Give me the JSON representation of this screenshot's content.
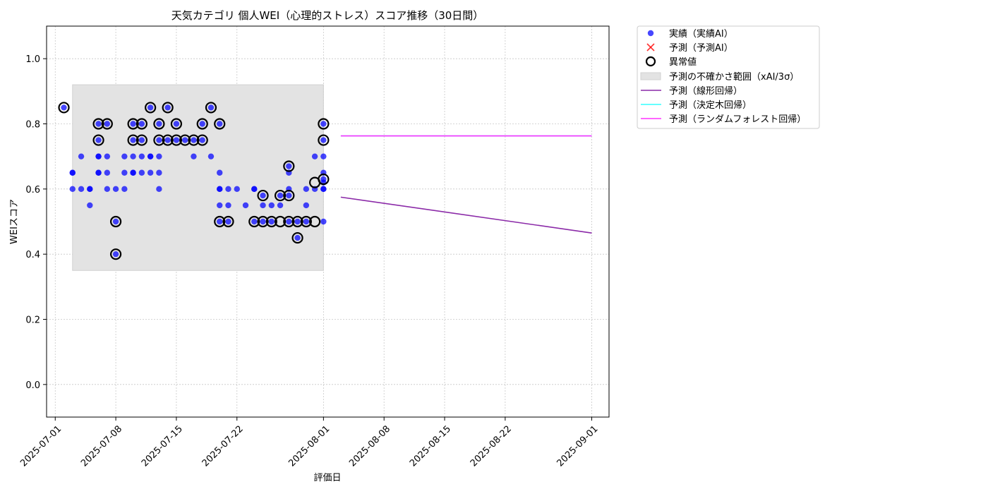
{
  "chart_data": {
    "type": "scatter",
    "title": "天気カテゴリ 個人WEI（心理的ストレス）スコア推移（30日間）",
    "xlabel": "評価日",
    "ylabel": "WEIスコア",
    "xlim": [
      "2025-06-30",
      "2025-09-03"
    ],
    "ylim": [
      -0.1,
      1.1
    ],
    "grid": true,
    "legend_position": "outside-top-right",
    "x_ticks": [
      "2025-07-01",
      "2025-07-08",
      "2025-07-15",
      "2025-07-22",
      "2025-08-01",
      "2025-08-08",
      "2025-08-15",
      "2025-08-22",
      "2025-09-01"
    ],
    "y_ticks": [
      0.0,
      0.2,
      0.4,
      0.6,
      0.8,
      1.0
    ],
    "y_tick_labels": [
      "0.0",
      "0.2",
      "0.4",
      "0.6",
      "0.8",
      "1.0"
    ],
    "uncertainty_band": {
      "name": "予測の不確かさ範囲（xAI/3σ）",
      "x_start": "2025-07-03",
      "x_end": "2025-08-01",
      "y_low": 0.35,
      "y_high": 0.92,
      "color": "#e3e3e3"
    },
    "series": [
      {
        "name": "実績（実績AI）",
        "kind": "points",
        "color": "#0000ff",
        "points": [
          [
            "2025-07-02",
            0.85
          ],
          [
            "2025-07-03",
            0.65
          ],
          [
            "2025-07-03",
            0.6
          ],
          [
            "2025-07-03",
            0.65
          ],
          [
            "2025-07-04",
            0.7
          ],
          [
            "2025-07-04",
            0.6
          ],
          [
            "2025-07-05",
            0.6
          ],
          [
            "2025-07-05",
            0.55
          ],
          [
            "2025-07-05",
            0.6
          ],
          [
            "2025-07-06",
            0.65
          ],
          [
            "2025-07-06",
            0.7
          ],
          [
            "2025-07-06",
            0.7
          ],
          [
            "2025-07-06",
            0.65
          ],
          [
            "2025-07-06",
            0.8
          ],
          [
            "2025-07-06",
            0.75
          ],
          [
            "2025-07-07",
            0.65
          ],
          [
            "2025-07-07",
            0.8
          ],
          [
            "2025-07-07",
            0.7
          ],
          [
            "2025-07-07",
            0.6
          ],
          [
            "2025-07-08",
            0.5
          ],
          [
            "2025-07-08",
            0.4
          ],
          [
            "2025-07-08",
            0.6
          ],
          [
            "2025-07-09",
            0.7
          ],
          [
            "2025-07-09",
            0.65
          ],
          [
            "2025-07-09",
            0.6
          ],
          [
            "2025-07-10",
            0.65
          ],
          [
            "2025-07-10",
            0.75
          ],
          [
            "2025-07-10",
            0.7
          ],
          [
            "2025-07-10",
            0.8
          ],
          [
            "2025-07-10",
            0.65
          ],
          [
            "2025-07-11",
            0.75
          ],
          [
            "2025-07-11",
            0.8
          ],
          [
            "2025-07-11",
            0.7
          ],
          [
            "2025-07-11",
            0.65
          ],
          [
            "2025-07-12",
            0.7
          ],
          [
            "2025-07-12",
            0.65
          ],
          [
            "2025-07-12",
            0.7
          ],
          [
            "2025-07-12",
            0.85
          ],
          [
            "2025-07-13",
            0.8
          ],
          [
            "2025-07-13",
            0.7
          ],
          [
            "2025-07-13",
            0.65
          ],
          [
            "2025-07-13",
            0.75
          ],
          [
            "2025-07-13",
            0.6
          ],
          [
            "2025-07-14",
            0.75
          ],
          [
            "2025-07-14",
            0.85
          ],
          [
            "2025-07-15",
            0.75
          ],
          [
            "2025-07-15",
            0.8
          ],
          [
            "2025-07-16",
            0.75
          ],
          [
            "2025-07-17",
            0.75
          ],
          [
            "2025-07-17",
            0.7
          ],
          [
            "2025-07-18",
            0.75
          ],
          [
            "2025-07-18",
            0.8
          ],
          [
            "2025-07-19",
            0.85
          ],
          [
            "2025-07-19",
            0.7
          ],
          [
            "2025-07-20",
            0.8
          ],
          [
            "2025-07-20",
            0.65
          ],
          [
            "2025-07-20",
            0.6
          ],
          [
            "2025-07-20",
            0.5
          ],
          [
            "2025-07-20",
            0.55
          ],
          [
            "2025-07-20",
            0.6
          ],
          [
            "2025-07-21",
            0.55
          ],
          [
            "2025-07-21",
            0.5
          ],
          [
            "2025-07-21",
            0.6
          ],
          [
            "2025-07-22",
            0.6
          ],
          [
            "2025-07-23",
            0.55
          ],
          [
            "2025-07-24",
            0.6
          ],
          [
            "2025-07-24",
            0.6
          ],
          [
            "2025-07-24",
            0.5
          ],
          [
            "2025-07-25",
            0.55
          ],
          [
            "2025-07-25",
            0.58
          ],
          [
            "2025-07-25",
            0.5
          ],
          [
            "2025-07-26",
            0.55
          ],
          [
            "2025-07-26",
            0.5
          ],
          [
            "2025-07-27",
            0.55
          ],
          [
            "2025-07-27",
            0.58
          ],
          [
            "2025-07-28",
            0.5
          ],
          [
            "2025-07-28",
            0.67
          ],
          [
            "2025-07-28",
            0.65
          ],
          [
            "2025-07-28",
            0.6
          ],
          [
            "2025-07-28",
            0.58
          ],
          [
            "2025-07-29",
            0.45
          ],
          [
            "2025-07-29",
            0.5
          ],
          [
            "2025-07-30",
            0.6
          ],
          [
            "2025-07-30",
            0.55
          ],
          [
            "2025-07-30",
            0.5
          ],
          [
            "2025-07-31",
            0.7
          ],
          [
            "2025-07-31",
            0.6
          ],
          [
            "2025-08-01",
            0.5
          ],
          [
            "2025-08-01",
            0.62
          ],
          [
            "2025-08-01",
            0.6
          ],
          [
            "2025-08-01",
            0.6
          ],
          [
            "2025-08-01",
            0.63
          ],
          [
            "2025-08-01",
            0.65
          ],
          [
            "2025-08-01",
            0.7
          ],
          [
            "2025-08-01",
            0.75
          ],
          [
            "2025-08-01",
            0.8
          ]
        ]
      },
      {
        "name": "予測（予測AI）",
        "kind": "points",
        "color": "#ff0000",
        "points": []
      },
      {
        "name": "異常値",
        "kind": "anomaly",
        "color": "#000000",
        "points": [
          [
            "2025-07-02",
            0.85
          ],
          [
            "2025-07-06",
            0.8
          ],
          [
            "2025-07-06",
            0.75
          ],
          [
            "2025-07-07",
            0.8
          ],
          [
            "2025-07-08",
            0.5
          ],
          [
            "2025-07-08",
            0.4
          ],
          [
            "2025-07-10",
            0.75
          ],
          [
            "2025-07-10",
            0.8
          ],
          [
            "2025-07-11",
            0.75
          ],
          [
            "2025-07-11",
            0.8
          ],
          [
            "2025-07-12",
            0.85
          ],
          [
            "2025-07-13",
            0.8
          ],
          [
            "2025-07-13",
            0.75
          ],
          [
            "2025-07-14",
            0.75
          ],
          [
            "2025-07-14",
            0.85
          ],
          [
            "2025-07-15",
            0.75
          ],
          [
            "2025-07-15",
            0.8
          ],
          [
            "2025-07-16",
            0.75
          ],
          [
            "2025-07-17",
            0.75
          ],
          [
            "2025-07-18",
            0.75
          ],
          [
            "2025-07-18",
            0.8
          ],
          [
            "2025-07-19",
            0.85
          ],
          [
            "2025-07-20",
            0.8
          ],
          [
            "2025-07-20",
            0.5
          ],
          [
            "2025-07-21",
            0.5
          ],
          [
            "2025-07-24",
            0.5
          ],
          [
            "2025-07-25",
            0.58
          ],
          [
            "2025-07-25",
            0.5
          ],
          [
            "2025-07-26",
            0.5
          ],
          [
            "2025-07-27",
            0.58
          ],
          [
            "2025-07-27",
            0.5
          ],
          [
            "2025-07-28",
            0.67
          ],
          [
            "2025-07-28",
            0.58
          ],
          [
            "2025-07-28",
            0.5
          ],
          [
            "2025-07-29",
            0.45
          ],
          [
            "2025-07-29",
            0.5
          ],
          [
            "2025-07-30",
            0.5
          ],
          [
            "2025-07-31",
            0.62
          ],
          [
            "2025-07-31",
            0.5
          ],
          [
            "2025-08-01",
            0.63
          ],
          [
            "2025-08-01",
            0.75
          ],
          [
            "2025-08-01",
            0.8
          ]
        ]
      },
      {
        "name": "予測（線形回帰）",
        "kind": "line",
        "color": "#8b2aa8",
        "points": [
          [
            "2025-08-03",
            0.575
          ],
          [
            "2025-09-01",
            0.465
          ]
        ]
      },
      {
        "name": "予測（決定木回帰）",
        "kind": "line",
        "color": "#33ffff",
        "points": [
          [
            "2025-08-03",
            0.763
          ],
          [
            "2025-09-01",
            0.763
          ]
        ]
      },
      {
        "name": "予測（ランダムフォレスト回帰）",
        "kind": "line",
        "color": "#ff33ff",
        "points": [
          [
            "2025-08-03",
            0.763
          ],
          [
            "2025-09-01",
            0.763
          ]
        ]
      }
    ]
  }
}
